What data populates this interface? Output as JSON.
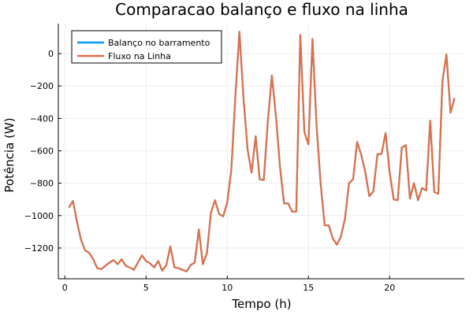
{
  "chart_data": {
    "type": "line",
    "title": "Comparacao balanço e fluxo na linha",
    "xlabel": "Tempo (h)",
    "ylabel": "Potência (W)",
    "xlim": [
      -0.4,
      24.6
    ],
    "ylim": [
      -1390,
      185
    ],
    "x_ticks": [
      0,
      5,
      10,
      15,
      20
    ],
    "y_ticks": [
      0,
      -200,
      -400,
      -600,
      -800,
      -1000,
      -1200
    ],
    "grid": true,
    "legend_position": "top-left",
    "series": [
      {
        "name": "Balanço no barramento",
        "color": "#009af9",
        "x": [
          0.25,
          0.5,
          0.75,
          1,
          1.25,
          1.5,
          1.75,
          2,
          2.25,
          2.5,
          2.75,
          3,
          3.25,
          3.5,
          3.75,
          4,
          4.25,
          4.5,
          4.75,
          5,
          5.25,
          5.5,
          5.75,
          6,
          6.25,
          6.5,
          6.75,
          7,
          7.25,
          7.5,
          7.75,
          8,
          8.25,
          8.5,
          8.75,
          9,
          9.25,
          9.5,
          9.75,
          10,
          10.25,
          10.5,
          10.75,
          11,
          11.25,
          11.5,
          11.75,
          12,
          12.25,
          12.5,
          12.75,
          13,
          13.25,
          13.5,
          13.75,
          14,
          14.25,
          14.5,
          14.75,
          15,
          15.25,
          15.5,
          15.75,
          16,
          16.25,
          16.5,
          16.75,
          17,
          17.25,
          17.5,
          17.75,
          18,
          18.25,
          18.5,
          18.75,
          19,
          19.25,
          19.5,
          19.75,
          20,
          20.25,
          20.5,
          20.75,
          21,
          21.25,
          21.5,
          21.75,
          22,
          22.25,
          22.5,
          22.75,
          23,
          23.25,
          23.5,
          23.75,
          24
        ],
        "y": [
          -950,
          -910,
          -1040,
          -1150,
          -1215,
          -1230,
          -1270,
          -1325,
          -1330,
          -1310,
          -1290,
          -1275,
          -1300,
          -1270,
          -1310,
          -1320,
          -1335,
          -1290,
          -1245,
          -1280,
          -1295,
          -1320,
          -1280,
          -1340,
          -1305,
          -1190,
          -1320,
          -1325,
          -1335,
          -1345,
          -1305,
          -1290,
          -1085,
          -1300,
          -1230,
          -980,
          -905,
          -990,
          -1005,
          -920,
          -720,
          -270,
          135,
          -270,
          -590,
          -735,
          -510,
          -775,
          -780,
          -420,
          -135,
          -385,
          -700,
          -925,
          -925,
          -975,
          -975,
          115,
          -485,
          -560,
          90,
          -440,
          -800,
          -1060,
          -1060,
          -1140,
          -1180,
          -1130,
          -1020,
          -800,
          -775,
          -545,
          -625,
          -730,
          -880,
          -850,
          -620,
          -620,
          -490,
          -730,
          -900,
          -905,
          -580,
          -565,
          -895,
          -800,
          -905,
          -830,
          -845,
          -415,
          -855,
          -865,
          -170,
          -5,
          -365,
          -275
        ]
      },
      {
        "name": "Fluxo na Linha",
        "color": "#e26f46",
        "x": [
          0.25,
          0.5,
          0.75,
          1,
          1.25,
          1.5,
          1.75,
          2,
          2.25,
          2.5,
          2.75,
          3,
          3.25,
          3.5,
          3.75,
          4,
          4.25,
          4.5,
          4.75,
          5,
          5.25,
          5.5,
          5.75,
          6,
          6.25,
          6.5,
          6.75,
          7,
          7.25,
          7.5,
          7.75,
          8,
          8.25,
          8.5,
          8.75,
          9,
          9.25,
          9.5,
          9.75,
          10,
          10.25,
          10.5,
          10.75,
          11,
          11.25,
          11.5,
          11.75,
          12,
          12.25,
          12.5,
          12.75,
          13,
          13.25,
          13.5,
          13.75,
          14,
          14.25,
          14.5,
          14.75,
          15,
          15.25,
          15.5,
          15.75,
          16,
          16.25,
          16.5,
          16.75,
          17,
          17.25,
          17.5,
          17.75,
          18,
          18.25,
          18.5,
          18.75,
          19,
          19.25,
          19.5,
          19.75,
          20,
          20.25,
          20.5,
          20.75,
          21,
          21.25,
          21.5,
          21.75,
          22,
          22.25,
          22.5,
          22.75,
          23,
          23.25,
          23.5,
          23.75,
          24
        ],
        "y": [
          -950,
          -910,
          -1040,
          -1150,
          -1215,
          -1230,
          -1270,
          -1325,
          -1330,
          -1310,
          -1290,
          -1275,
          -1300,
          -1270,
          -1310,
          -1320,
          -1335,
          -1290,
          -1245,
          -1280,
          -1295,
          -1320,
          -1280,
          -1340,
          -1305,
          -1190,
          -1320,
          -1325,
          -1335,
          -1345,
          -1305,
          -1290,
          -1085,
          -1300,
          -1230,
          -980,
          -905,
          -990,
          -1005,
          -920,
          -720,
          -270,
          135,
          -270,
          -590,
          -735,
          -510,
          -775,
          -780,
          -420,
          -135,
          -385,
          -700,
          -925,
          -925,
          -975,
          -975,
          115,
          -485,
          -560,
          90,
          -440,
          -800,
          -1060,
          -1060,
          -1140,
          -1180,
          -1130,
          -1020,
          -800,
          -775,
          -545,
          -625,
          -730,
          -880,
          -850,
          -620,
          -620,
          -490,
          -730,
          -900,
          -905,
          -580,
          -565,
          -895,
          -800,
          -905,
          -830,
          -845,
          -415,
          -855,
          -865,
          -170,
          -5,
          -365,
          -275
        ]
      }
    ]
  }
}
